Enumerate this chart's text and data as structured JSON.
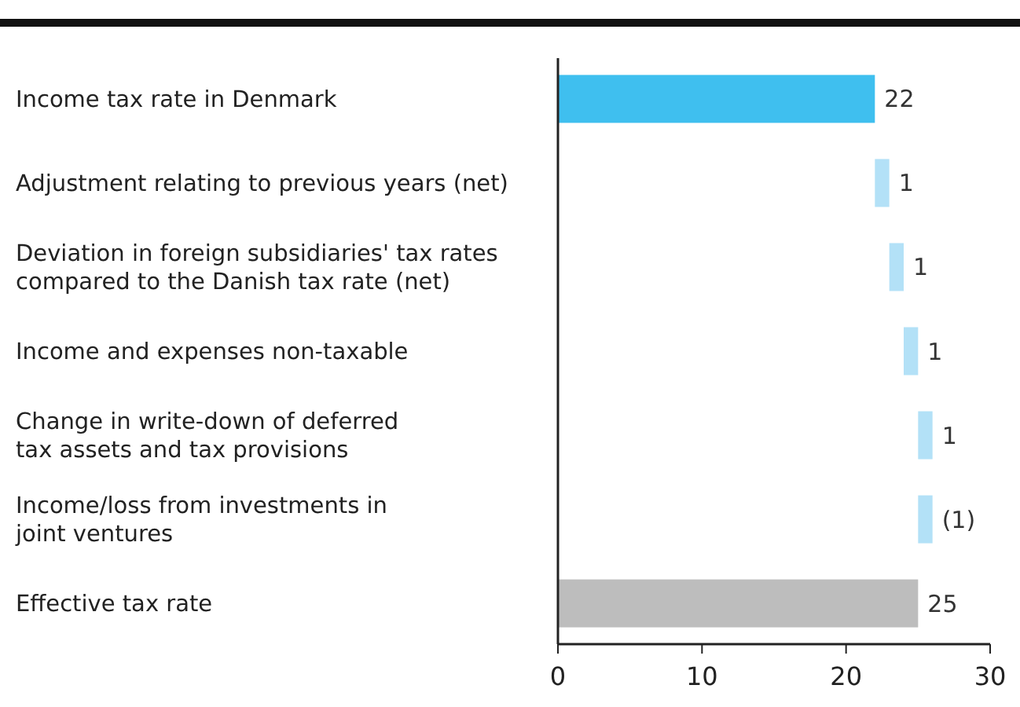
{
  "chart_data": {
    "type": "bar",
    "orientation": "horizontal",
    "categories": [
      "Income tax rate in Denmark",
      "Adjustment relating to previous years (net)",
      "Deviation in foreign subsidiaries' tax rates\ncompared to the Danish tax rate (net)",
      "Income and expenses non-taxable",
      "Change in write-down of deferred\ntax assets and tax provisions",
      "Income/loss from investments in\njoint ventures",
      "Effective tax rate"
    ],
    "values": [
      22,
      1,
      1,
      1,
      1,
      -1,
      25
    ],
    "base": [
      0,
      22,
      23,
      24,
      25,
      26,
      0
    ],
    "colors": [
      "#3fbfef",
      "#b3e1f7",
      "#b3e1f7",
      "#b3e1f7",
      "#b3e1f7",
      "#b3e1f7",
      "#bdbdbd"
    ],
    "value_labels": [
      "22",
      "1",
      "1",
      "1",
      "1",
      "(1)",
      "25"
    ],
    "xlim": [
      0,
      30
    ],
    "xticks": [
      0,
      10,
      20,
      30
    ],
    "grid": false
  }
}
